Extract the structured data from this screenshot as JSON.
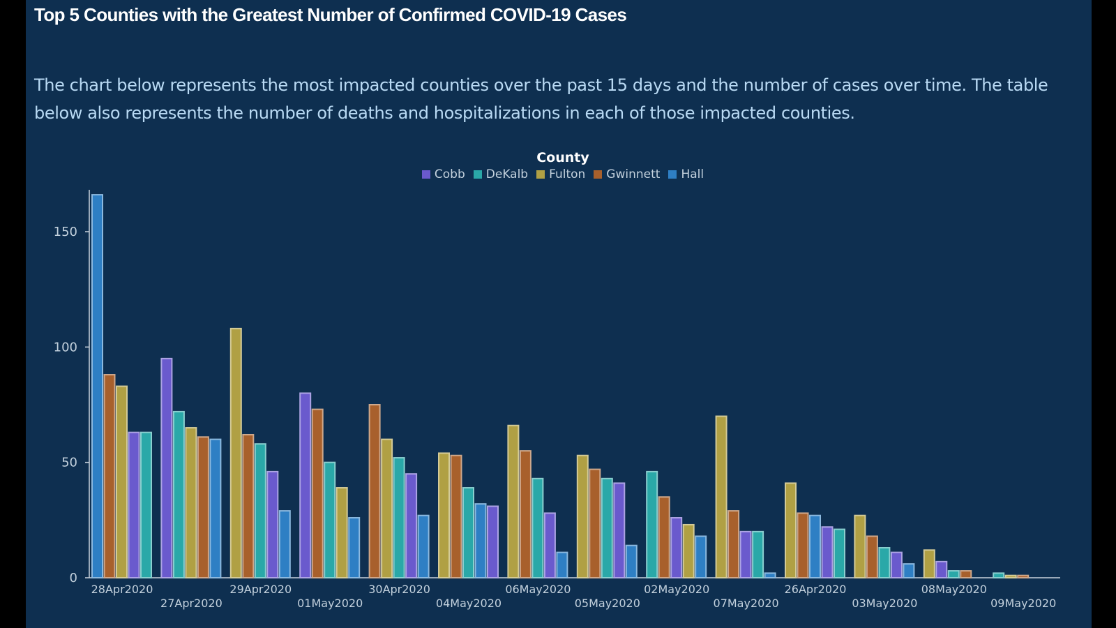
{
  "header": {
    "title": "Top 5 Counties with the Greatest Number of Confirmed COVID-19 Cases",
    "description": "The chart below represents the most impacted counties over the past 15 days and the number of cases over time. The table below also represents the number of deaths and hospitalizations in each of those impacted counties."
  },
  "legend": {
    "title": "County",
    "items": [
      {
        "name": "Cobb",
        "color": "#6a5acd"
      },
      {
        "name": "DeKalb",
        "color": "#2aa8a8"
      },
      {
        "name": "Fulton",
        "color": "#b0a044"
      },
      {
        "name": "Gwinnett",
        "color": "#a8602c"
      },
      {
        "name": "Hall",
        "color": "#2e7fc4"
      }
    ]
  },
  "chart_data": {
    "type": "bar",
    "title": "",
    "xlabel": "",
    "ylabel": "",
    "ylim": [
      0,
      168
    ],
    "yticks": [
      0,
      50,
      100,
      150
    ],
    "grid": false,
    "legend_position": "top-center",
    "groups": [
      {
        "date": "28Apr2020",
        "bars": [
          {
            "county": "Hall",
            "value": 166
          },
          {
            "county": "Gwinnett",
            "value": 88
          },
          {
            "county": "Fulton",
            "value": 83
          },
          {
            "county": "Cobb",
            "value": 63
          },
          {
            "county": "DeKalb",
            "value": 63
          }
        ]
      },
      {
        "date": "27Apr2020",
        "bars": [
          {
            "county": "Cobb",
            "value": 95
          },
          {
            "county": "DeKalb",
            "value": 72
          },
          {
            "county": "Fulton",
            "value": 65
          },
          {
            "county": "Gwinnett",
            "value": 61
          },
          {
            "county": "Hall",
            "value": 60
          }
        ]
      },
      {
        "date": "29Apr2020",
        "bars": [
          {
            "county": "Fulton",
            "value": 108
          },
          {
            "county": "Gwinnett",
            "value": 62
          },
          {
            "county": "DeKalb",
            "value": 58
          },
          {
            "county": "Cobb",
            "value": 46
          },
          {
            "county": "Hall",
            "value": 29
          }
        ]
      },
      {
        "date": "01May2020",
        "bars": [
          {
            "county": "Cobb",
            "value": 80
          },
          {
            "county": "Gwinnett",
            "value": 73
          },
          {
            "county": "DeKalb",
            "value": 50
          },
          {
            "county": "Fulton",
            "value": 39
          },
          {
            "county": "Hall",
            "value": 26
          }
        ]
      },
      {
        "date": "30Apr2020",
        "bars": [
          {
            "county": "Gwinnett",
            "value": 75
          },
          {
            "county": "Fulton",
            "value": 60
          },
          {
            "county": "DeKalb",
            "value": 52
          },
          {
            "county": "Cobb",
            "value": 45
          },
          {
            "county": "Hall",
            "value": 27
          }
        ]
      },
      {
        "date": "04May2020",
        "bars": [
          {
            "county": "Fulton",
            "value": 54
          },
          {
            "county": "Gwinnett",
            "value": 53
          },
          {
            "county": "DeKalb",
            "value": 39
          },
          {
            "county": "Hall",
            "value": 32
          },
          {
            "county": "Cobb",
            "value": 31
          }
        ]
      },
      {
        "date": "06May2020",
        "bars": [
          {
            "county": "Fulton",
            "value": 66
          },
          {
            "county": "Gwinnett",
            "value": 55
          },
          {
            "county": "DeKalb",
            "value": 43
          },
          {
            "county": "Cobb",
            "value": 28
          },
          {
            "county": "Hall",
            "value": 11
          }
        ]
      },
      {
        "date": "05May2020",
        "bars": [
          {
            "county": "Fulton",
            "value": 53
          },
          {
            "county": "Gwinnett",
            "value": 47
          },
          {
            "county": "DeKalb",
            "value": 43
          },
          {
            "county": "Cobb",
            "value": 41
          },
          {
            "county": "Hall",
            "value": 14
          }
        ]
      },
      {
        "date": "02May2020",
        "bars": [
          {
            "county": "DeKalb",
            "value": 46
          },
          {
            "county": "Gwinnett",
            "value": 35
          },
          {
            "county": "Cobb",
            "value": 26
          },
          {
            "county": "Fulton",
            "value": 23
          },
          {
            "county": "Hall",
            "value": 18
          }
        ]
      },
      {
        "date": "07May2020",
        "bars": [
          {
            "county": "Fulton",
            "value": 70
          },
          {
            "county": "Gwinnett",
            "value": 29
          },
          {
            "county": "Cobb",
            "value": 20
          },
          {
            "county": "DeKalb",
            "value": 20
          },
          {
            "county": "Hall",
            "value": 2
          }
        ]
      },
      {
        "date": "26Apr2020",
        "bars": [
          {
            "county": "Fulton",
            "value": 41
          },
          {
            "county": "Gwinnett",
            "value": 28
          },
          {
            "county": "Hall",
            "value": 27
          },
          {
            "county": "Cobb",
            "value": 22
          },
          {
            "county": "DeKalb",
            "value": 21
          }
        ]
      },
      {
        "date": "03May2020",
        "bars": [
          {
            "county": "Fulton",
            "value": 27
          },
          {
            "county": "Gwinnett",
            "value": 18
          },
          {
            "county": "DeKalb",
            "value": 13
          },
          {
            "county": "Cobb",
            "value": 11
          },
          {
            "county": "Hall",
            "value": 6
          }
        ]
      },
      {
        "date": "08May2020",
        "bars": [
          {
            "county": "Fulton",
            "value": 12
          },
          {
            "county": "Cobb",
            "value": 7
          },
          {
            "county": "DeKalb",
            "value": 3
          },
          {
            "county": "Gwinnett",
            "value": 3
          }
        ]
      },
      {
        "date": "09May2020",
        "bars": [
          {
            "county": "DeKalb",
            "value": 2
          },
          {
            "county": "Fulton",
            "value": 1
          },
          {
            "county": "Gwinnett",
            "value": 1
          }
        ]
      }
    ]
  }
}
